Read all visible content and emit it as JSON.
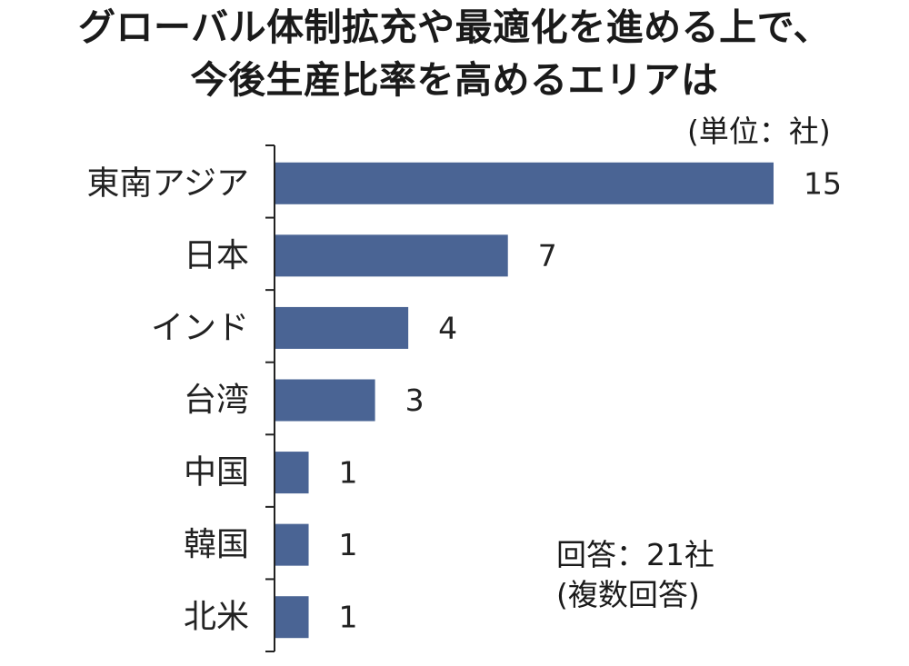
{
  "title_line1": "グローバル体制拡充や最適化を進める上で、",
  "title_line2": "今後生産比率を高めるエリアは",
  "unit": "(単位：社)",
  "note_line1": "回答：21社",
  "note_line2": "(複数回答)",
  "bar_color": "#4a6494",
  "chart_data": {
    "type": "bar",
    "orientation": "horizontal",
    "categories": [
      "東南アジア",
      "日本",
      "インド",
      "台湾",
      "中国",
      "韓国",
      "北米"
    ],
    "values": [
      15,
      7,
      4,
      3,
      1,
      1,
      1
    ],
    "title": "グローバル体制拡充や最適化を進める上で、今後生産比率を高めるエリアは",
    "xlim": [
      0,
      15
    ],
    "grid": false,
    "legend": "none"
  }
}
